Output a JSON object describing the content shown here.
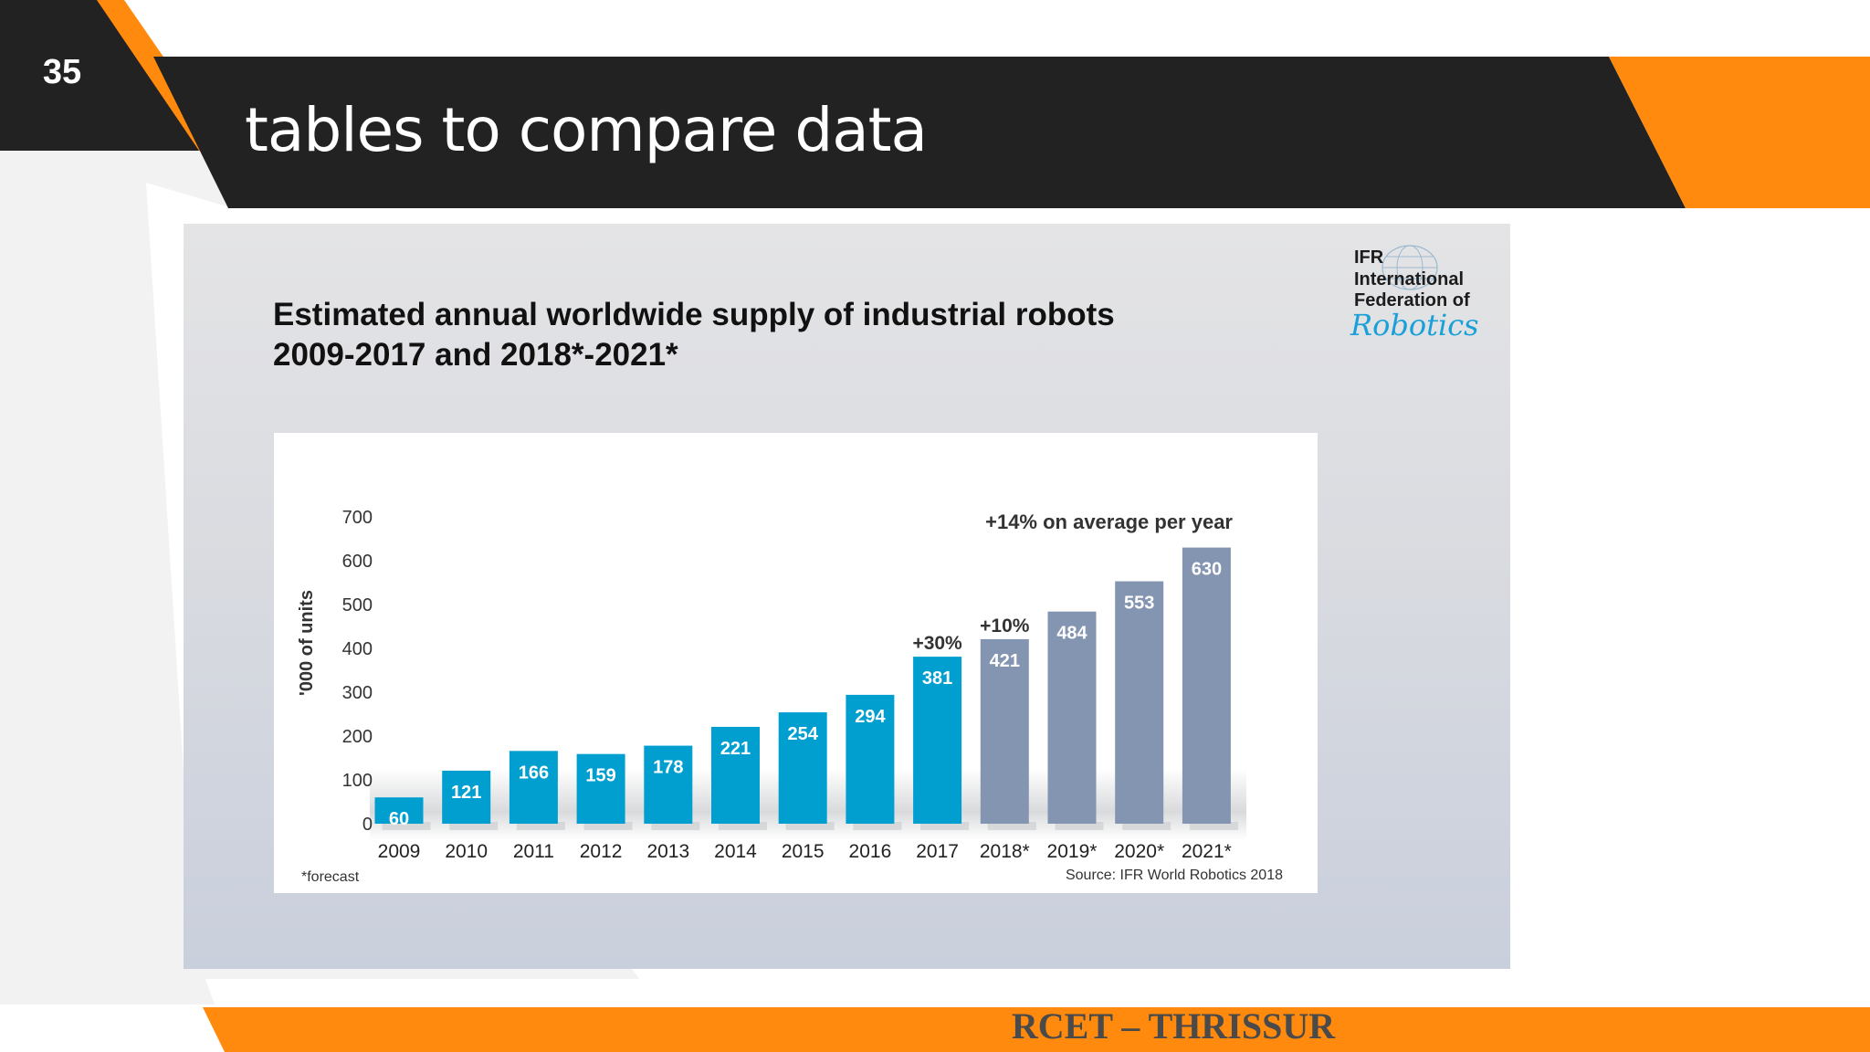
{
  "slide": {
    "number": "35",
    "title": "tables to compare data",
    "footer": "RCET – THRISSUR"
  },
  "colors": {
    "dark": "#222222",
    "orange": "#ff8a0d",
    "bar_actual": "#019fd0",
    "bar_forecast": "#8395b1"
  },
  "logo": {
    "abbr": "IFR",
    "line1": "International",
    "line2": "Federation of",
    "script": "Robotics"
  },
  "chart_data": {
    "type": "bar",
    "title": "Estimated annual worldwide supply of industrial robots",
    "subtitle": "2009-2017 and 2018*-2021*",
    "ylabel": "'000 of units",
    "xlabel": "",
    "ylim": [
      0,
      700
    ],
    "yticks": [
      0,
      100,
      200,
      300,
      400,
      500,
      600,
      700
    ],
    "categories": [
      "2009",
      "2010",
      "2011",
      "2012",
      "2013",
      "2014",
      "2015",
      "2016",
      "2017",
      "2018*",
      "2019*",
      "2020*",
      "2021*"
    ],
    "values": [
      60,
      121,
      166,
      159,
      178,
      221,
      254,
      294,
      381,
      421,
      484,
      553,
      630
    ],
    "forecast_from_index": 9,
    "annotations": [
      {
        "category": "2017",
        "text": "+30%"
      },
      {
        "category": "2018*",
        "text": "+10%"
      }
    ],
    "headline": "+14% on average per year",
    "footnote": "*forecast",
    "source": "Source: IFR World Robotics 2018",
    "grid": false,
    "legend": "none"
  }
}
